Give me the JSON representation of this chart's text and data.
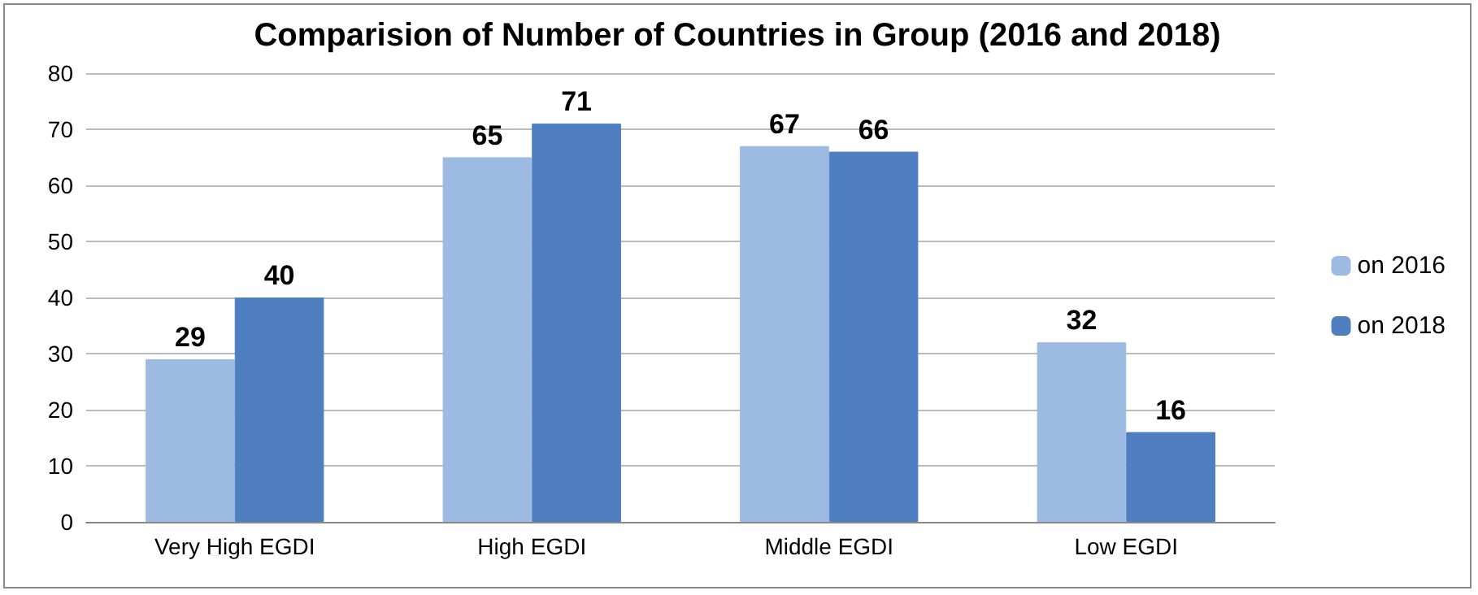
{
  "chart_data": {
    "type": "bar",
    "title": "Comparision of Number of Countries in Group (2016 and 2018)",
    "categories": [
      "Very High EGDI",
      "High EGDI",
      "Middle EGDI",
      "Low EGDI"
    ],
    "series": [
      {
        "name": "on 2016",
        "color": "#9dbbe2",
        "values": [
          29,
          65,
          67,
          32
        ]
      },
      {
        "name": "on 2018",
        "color": "#4f7fc0",
        "values": [
          40,
          71,
          66,
          16
        ]
      }
    ],
    "ylim": [
      0,
      80
    ],
    "yticks": [
      0,
      10,
      20,
      30,
      40,
      50,
      60,
      70,
      80
    ],
    "grid": "y",
    "legend": "right",
    "data_labels": true
  }
}
